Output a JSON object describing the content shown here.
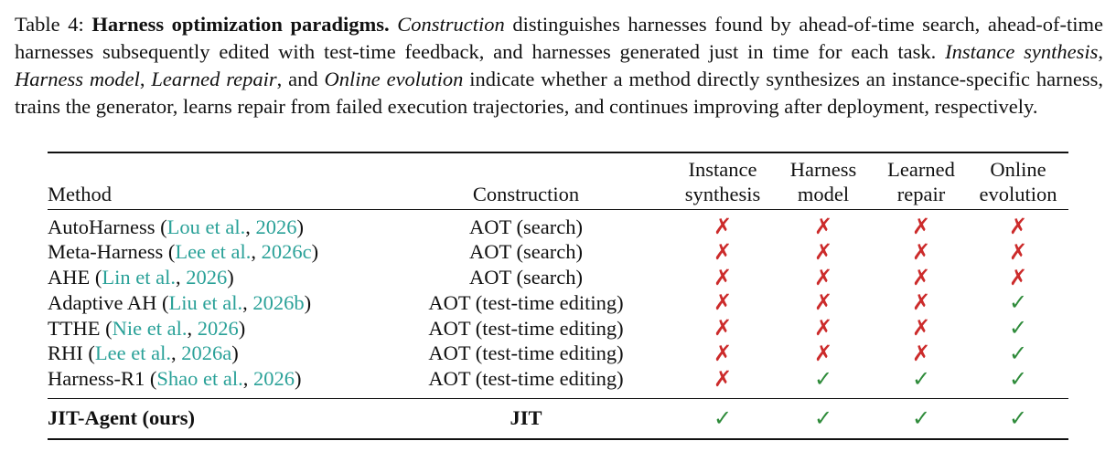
{
  "caption": {
    "runs": [
      "Table 4: ",
      "Harness optimization paradigms.",
      " ",
      "Construction",
      " distinguishes harnesses found by ahead-of-time search, ahead-of-time harnesses subsequently edited with test-time feedback, and harnesses generated just in time for each task. ",
      "Instance synthesis",
      ", ",
      "Harness model",
      ", ",
      "Learned repair",
      ", and ",
      "Online evolution",
      " indicate whether a method directly synthesizes an instance-specific harness, trains the generator, learns repair from failed execution trajectories, and continues improving after deployment, respectively."
    ]
  },
  "table": {
    "header": [
      "Method",
      "Construction",
      [
        "Instance",
        "synthesis"
      ],
      [
        "Harness",
        "model"
      ],
      [
        "Learned",
        "repair"
      ],
      [
        "Online",
        "evolution"
      ]
    ],
    "marks": {
      "cross": "✗",
      "check": "✓"
    },
    "mark_colors": {
      "cross": "#cc2b2b",
      "check": "#2e8b3a"
    },
    "cite_color": "#2aa198",
    "rows": [
      {
        "method": [
          "AutoHarness (",
          "Lou et al.",
          ", ",
          "2026",
          ")"
        ],
        "construction": "AOT (search)",
        "marks": [
          "✗",
          "✗",
          "✗",
          "✗"
        ]
      },
      {
        "method": [
          "Meta-Harness (",
          "Lee et al.",
          ", ",
          "2026c",
          ")"
        ],
        "construction": "AOT (search)",
        "marks": [
          "✗",
          "✗",
          "✗",
          "✗"
        ]
      },
      {
        "method": [
          "AHE (",
          "Lin et al.",
          ", ",
          "2026",
          ")"
        ],
        "construction": "AOT (search)",
        "marks": [
          "✗",
          "✗",
          "✗",
          "✗"
        ]
      },
      {
        "method": [
          "Adaptive AH (",
          "Liu et al.",
          ", ",
          "2026b",
          ")"
        ],
        "construction": "AOT (test-time editing)",
        "marks": [
          "✗",
          "✗",
          "✗",
          "✓"
        ]
      },
      {
        "method": [
          "TTHE (",
          "Nie et al.",
          ", ",
          "2026",
          ")"
        ],
        "construction": "AOT (test-time editing)",
        "marks": [
          "✗",
          "✗",
          "✗",
          "✓"
        ]
      },
      {
        "method": [
          "RHI (",
          "Lee et al.",
          ", ",
          "2026a",
          ")"
        ],
        "construction": "AOT (test-time editing)",
        "marks": [
          "✗",
          "✗",
          "✗",
          "✓"
        ]
      },
      {
        "method": [
          "Harness-R1 (",
          "Shao et al.",
          ", ",
          "2026",
          ")"
        ],
        "construction": "AOT (test-time editing)",
        "marks": [
          "✗",
          "✓",
          "✓",
          "✓"
        ]
      }
    ],
    "ours": {
      "method": "JIT-Agent (ours)",
      "construction": "JIT",
      "marks": [
        "✓",
        "✓",
        "✓",
        "✓"
      ]
    }
  }
}
